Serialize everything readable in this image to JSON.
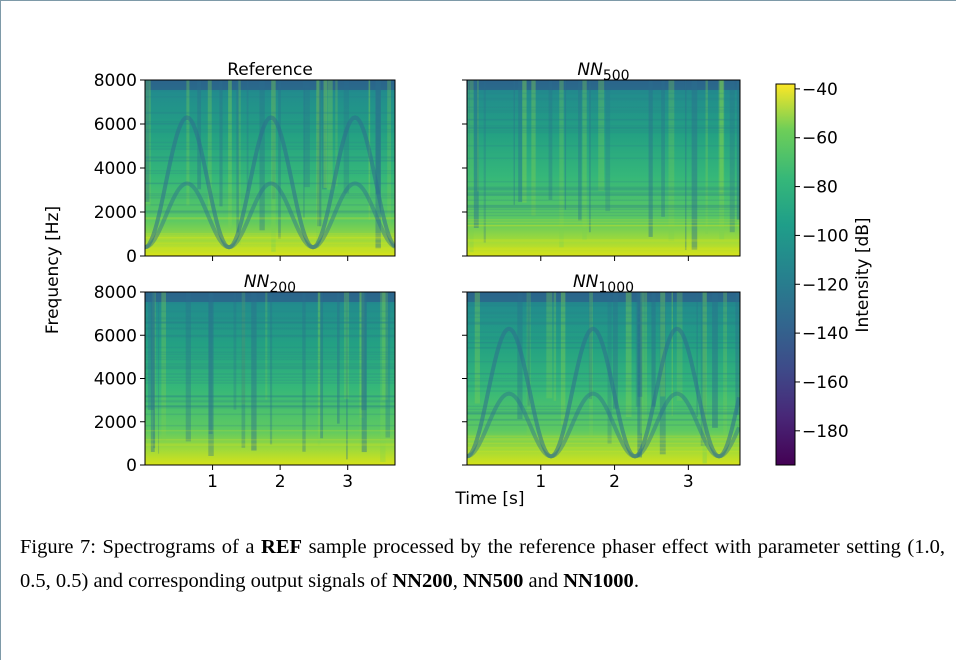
{
  "figure": {
    "panels": [
      {
        "title": "Reference"
      },
      {
        "title": {
          "base": "NN",
          "sub": "500"
        }
      },
      {
        "title": {
          "base": "NN",
          "sub": "200"
        }
      },
      {
        "title": {
          "base": "NN",
          "sub": "1000"
        }
      }
    ],
    "xlabel": "Time [s]",
    "ylabel": "Frequency [Hz]",
    "xlim": [
      0,
      3.7
    ],
    "xticks": [
      1,
      2,
      3
    ],
    "ylim": [
      0,
      8000
    ],
    "yticks": [
      0,
      2000,
      4000,
      6000,
      8000
    ],
    "colorbar": {
      "label": "Intensity [dB]",
      "lim": [
        -194,
        -38
      ],
      "ticks": [
        {
          "value": -40,
          "label": "−40"
        },
        {
          "value": -60,
          "label": "−60"
        },
        {
          "value": -80,
          "label": "−80"
        },
        {
          "value": -100,
          "label": "−100"
        },
        {
          "value": -120,
          "label": "−120"
        },
        {
          "value": -140,
          "label": "−140"
        },
        {
          "value": -160,
          "label": "−160"
        },
        {
          "value": -180,
          "label": "−180"
        }
      ]
    }
  },
  "caption": [
    {
      "text": "Figure 7: Spectrograms of a ",
      "bold": false
    },
    {
      "text": "REF",
      "bold": true
    },
    {
      "text": " sample processed by the reference phaser effect with parameter setting (1.0, 0.5, 0.5) and corresponding output signals of ",
      "bold": false
    },
    {
      "text": "NN200",
      "bold": true
    },
    {
      "text": ", ",
      "bold": false
    },
    {
      "text": "NN500",
      "bold": true
    },
    {
      "text": " and ",
      "bold": false
    },
    {
      "text": "NN1000",
      "bold": true
    },
    {
      "text": ".",
      "bold": false
    }
  ]
}
